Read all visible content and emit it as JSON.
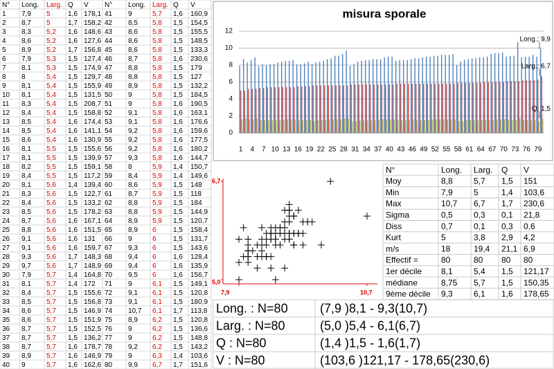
{
  "sheet": {
    "header": [
      "N°",
      "Long.",
      "Larg.",
      "Q",
      "V",
      "N°",
      "Long.",
      "Larg.",
      "Q",
      "V"
    ],
    "rows": [
      [
        "1",
        "7,9",
        "5",
        "1,6",
        "178,1",
        "41",
        "9",
        "5,7",
        "1,6",
        "160,9"
      ],
      [
        "2",
        "8,7",
        "5",
        "1,7",
        "158,2",
        "42",
        "8,5",
        "5,8",
        "1,5",
        "154,5"
      ],
      [
        "3",
        "8,3",
        "5,2",
        "1,6",
        "148,6",
        "43",
        "8,6",
        "5,8",
        "1,5",
        "155,5"
      ],
      [
        "4",
        "8,6",
        "5,2",
        "1,6",
        "127,6",
        "44",
        "8,6",
        "5,8",
        "1,5",
        "148,5"
      ],
      [
        "5",
        "8,9",
        "5,2",
        "1,7",
        "156,8",
        "45",
        "8,6",
        "5,8",
        "1,5",
        "133,3"
      ],
      [
        "6",
        "7,9",
        "5,3",
        "1,5",
        "127,4",
        "46",
        "8,7",
        "5,8",
        "1,6",
        "230,6"
      ],
      [
        "7",
        "8,1",
        "5,3",
        "1,5",
        "174,9",
        "47",
        "8,8",
        "5,8",
        "1,5",
        "179"
      ],
      [
        "8",
        "8",
        "5,4",
        "1,5",
        "129,7",
        "48",
        "8,8",
        "5,8",
        "1,5",
        "127"
      ],
      [
        "9",
        "8,1",
        "5,4",
        "1,5",
        "155,9",
        "49",
        "8,9",
        "5,8",
        "1,5",
        "132,2"
      ],
      [
        "10",
        "8,1",
        "5,4",
        "1,5",
        "131,5",
        "50",
        "9",
        "5,8",
        "1,5",
        "184,5"
      ],
      [
        "11",
        "8,3",
        "5,4",
        "1,5",
        "208,7",
        "51",
        "9",
        "5,8",
        "1,6",
        "190,5"
      ],
      [
        "12",
        "8,4",
        "5,4",
        "1,5",
        "158,8",
        "52",
        "9,1",
        "5,8",
        "1,6",
        "163,1"
      ],
      [
        "13",
        "8,5",
        "5,4",
        "1,6",
        "174,4",
        "53",
        "9,1",
        "5,8",
        "1,6",
        "176,6"
      ],
      [
        "14",
        "8,5",
        "5,4",
        "1,6",
        "141,1",
        "54",
        "9,2",
        "5,8",
        "1,6",
        "159,6"
      ],
      [
        "15",
        "8,6",
        "5,4",
        "1,6",
        "130,9",
        "55",
        "9,2",
        "5,8",
        "1,6",
        "177,5"
      ],
      [
        "16",
        "8,1",
        "5,5",
        "1,5",
        "155,6",
        "56",
        "9,2",
        "5,8",
        "1,6",
        "180,2"
      ],
      [
        "17",
        "8,1",
        "5,5",
        "1,5",
        "139,9",
        "57",
        "9,3",
        "5,8",
        "1,6",
        "144,7"
      ],
      [
        "18",
        "8,2",
        "5,5",
        "1,5",
        "159,1",
        "58",
        "8",
        "5,9",
        "1,4",
        "150,7"
      ],
      [
        "19",
        "8,4",
        "5,5",
        "1,5",
        "117,2",
        "59",
        "8,4",
        "5,9",
        "1,4",
        "149,6"
      ],
      [
        "20",
        "8,1",
        "5,6",
        "1,4",
        "139,4",
        "60",
        "8,6",
        "5,9",
        "1,5",
        "148"
      ],
      [
        "21",
        "8,3",
        "5,6",
        "1,5",
        "122,7",
        "61",
        "8,7",
        "5,9",
        "1,5",
        "118"
      ],
      [
        "22",
        "8,4",
        "5,6",
        "1,5",
        "133,2",
        "62",
        "8,8",
        "5,9",
        "1,5",
        "184"
      ],
      [
        "23",
        "8,5",
        "5,6",
        "1,5",
        "178,2",
        "63",
        "8,8",
        "5,9",
        "1,5",
        "144,9"
      ],
      [
        "24",
        "8,7",
        "5,6",
        "1,6",
        "167,1",
        "64",
        "8,9",
        "5,9",
        "1,5",
        "120,7"
      ],
      [
        "25",
        "8,8",
        "5,6",
        "1,6",
        "151,5",
        "65",
        "8,9",
        "6",
        "1,5",
        "158,4"
      ],
      [
        "26",
        "9,1",
        "5,6",
        "1,6",
        "131",
        "66",
        "9",
        "6",
        "1,5",
        "131,7"
      ],
      [
        "27",
        "9,1",
        "5,6",
        "1,6",
        "159,7",
        "67",
        "9,3",
        "6",
        "1,5",
        "143,6"
      ],
      [
        "28",
        "9,3",
        "5,6",
        "1,7",
        "148,3",
        "68",
        "9,4",
        "6",
        "1,6",
        "128,4"
      ],
      [
        "29",
        "9,7",
        "5,6",
        "1,7",
        "148,9",
        "69",
        "9,4",
        "6",
        "1,6",
        "135,9"
      ],
      [
        "30",
        "7,9",
        "5,7",
        "1,4",
        "164,8",
        "70",
        "9,5",
        "6",
        "1,6",
        "156,7"
      ],
      [
        "31",
        "8,1",
        "5,7",
        "1,4",
        "172",
        "71",
        "9",
        "6,1",
        "1,5",
        "149,1"
      ],
      [
        "32",
        "8,4",
        "5,7",
        "1,5",
        "155,6",
        "72",
        "9,1",
        "6,1",
        "1,5",
        "120,8"
      ],
      [
        "33",
        "8,5",
        "5,7",
        "1,5",
        "156,8",
        "73",
        "9,1",
        "6,1",
        "1,5",
        "180,9"
      ],
      [
        "34",
        "8,6",
        "5,7",
        "1,5",
        "146,9",
        "74",
        "10,7",
        "6,1",
        "1,7",
        "113,8"
      ],
      [
        "35",
        "8,6",
        "5,7",
        "1,5",
        "151,9",
        "75",
        "8,9",
        "6,2",
        "1,5",
        "120,8"
      ],
      [
        "36",
        "8,7",
        "5,7",
        "1,5",
        "152,5",
        "76",
        "9",
        "6,2",
        "1,5",
        "136,6"
      ],
      [
        "37",
        "8,7",
        "5,7",
        "1,5",
        "136,2",
        "77",
        "9",
        "6,2",
        "1,5",
        "148,8"
      ],
      [
        "38",
        "8,7",
        "5,7",
        "1,6",
        "178,7",
        "78",
        "9,2",
        "6,2",
        "1,5",
        "143,2"
      ],
      [
        "39",
        "8,9",
        "5,7",
        "1,6",
        "146,9",
        "79",
        "9",
        "6,3",
        "1,4",
        "103,6"
      ],
      [
        "40",
        "9",
        "5,7",
        "1,6",
        "162,6",
        "80",
        "9,9",
        "6,7",
        "1,7",
        "151,6"
      ]
    ]
  },
  "chart_data": [
    {
      "type": "bar",
      "title": "misura sporale",
      "categories": [
        "1",
        null,
        null,
        "4",
        null,
        null,
        "7",
        null,
        null,
        "10",
        null,
        null,
        "13",
        null,
        null,
        "16",
        null,
        null,
        "19",
        null,
        null,
        "22",
        null,
        null,
        "25",
        null,
        null,
        "28",
        null,
        null,
        "31",
        null,
        null,
        "34",
        null,
        null,
        "37",
        null,
        null,
        "40",
        null,
        null,
        "43",
        null,
        null,
        "46",
        null,
        null,
        "49",
        null,
        null,
        "52",
        null,
        null,
        "55",
        null,
        null,
        "58",
        null,
        null,
        "61",
        null,
        null,
        "64",
        null,
        null,
        "67",
        null,
        null,
        "70",
        null,
        null,
        "73",
        null,
        null,
        "76",
        null,
        null,
        "79",
        null
      ],
      "series": [
        {
          "name": "Long.",
          "color": "#4f81bd",
          "values": [
            7.9,
            8.7,
            8.3,
            8.6,
            8.9,
            7.9,
            8.1,
            8,
            8.1,
            8.1,
            8.3,
            8.4,
            8.5,
            8.5,
            8.6,
            8.1,
            8.1,
            8.2,
            8.4,
            8.1,
            8.3,
            8.4,
            8.5,
            8.7,
            8.8,
            9.1,
            9.1,
            9.3,
            9.7,
            7.9,
            8.1,
            8.4,
            8.5,
            8.6,
            8.6,
            8.7,
            8.7,
            8.7,
            8.9,
            9,
            9,
            8.5,
            8.6,
            8.6,
            8.6,
            8.7,
            8.8,
            8.8,
            8.9,
            9,
            9,
            9.1,
            9.1,
            9.2,
            9.2,
            9.2,
            9.3,
            8,
            8.4,
            8.6,
            8.7,
            8.8,
            8.8,
            8.9,
            8.9,
            9,
            9.3,
            9.4,
            9.4,
            9.5,
            9,
            9.1,
            9.1,
            10.7,
            8.9,
            9,
            9,
            9.2,
            9,
            9.9
          ]
        },
        {
          "name": "Larg.",
          "color": "#c0504d",
          "values": [
            5,
            5,
            5.2,
            5.2,
            5.2,
            5.3,
            5.3,
            5.4,
            5.4,
            5.4,
            5.4,
            5.4,
            5.4,
            5.4,
            5.4,
            5.5,
            5.5,
            5.5,
            5.5,
            5.6,
            5.6,
            5.6,
            5.6,
            5.6,
            5.6,
            5.6,
            5.6,
            5.6,
            5.6,
            5.7,
            5.7,
            5.7,
            5.7,
            5.7,
            5.7,
            5.7,
            5.7,
            5.7,
            5.7,
            5.7,
            5.7,
            5.8,
            5.8,
            5.8,
            5.8,
            5.8,
            5.8,
            5.8,
            5.8,
            5.8,
            5.8,
            5.8,
            5.8,
            5.8,
            5.8,
            5.8,
            5.8,
            5.9,
            5.9,
            5.9,
            5.9,
            5.9,
            5.9,
            5.9,
            6,
            6,
            6,
            6,
            6,
            6,
            6.1,
            6.1,
            6.1,
            6.1,
            6.2,
            6.2,
            6.2,
            6.2,
            6.3,
            6.7
          ]
        },
        {
          "name": "Q",
          "color": "#9bbb59",
          "values": [
            1.6,
            1.7,
            1.6,
            1.6,
            1.7,
            1.5,
            1.5,
            1.5,
            1.5,
            1.5,
            1.5,
            1.5,
            1.6,
            1.6,
            1.6,
            1.5,
            1.5,
            1.5,
            1.5,
            1.4,
            1.5,
            1.5,
            1.5,
            1.6,
            1.6,
            1.6,
            1.6,
            1.7,
            1.7,
            1.4,
            1.4,
            1.5,
            1.5,
            1.5,
            1.5,
            1.5,
            1.5,
            1.6,
            1.6,
            1.6,
            1.6,
            1.5,
            1.5,
            1.5,
            1.5,
            1.6,
            1.5,
            1.5,
            1.5,
            1.5,
            1.6,
            1.6,
            1.6,
            1.6,
            1.6,
            1.6,
            1.6,
            1.4,
            1.4,
            1.5,
            1.5,
            1.5,
            1.5,
            1.5,
            1.5,
            1.5,
            1.5,
            1.6,
            1.6,
            1.6,
            1.5,
            1.5,
            1.5,
            1.7,
            1.5,
            1.5,
            1.5,
            1.5,
            1.4,
            1.7
          ]
        }
      ],
      "annotations": [
        "Long.; 9,9",
        "Larg.; 6,7",
        "Q; 1,5"
      ],
      "ylim": [
        0,
        12
      ],
      "yticks": [
        0,
        2,
        4,
        6,
        8,
        10,
        12
      ],
      "grid": true
    },
    {
      "type": "scatter",
      "x": [
        7.9,
        8.7,
        8.3,
        8.6,
        8.9,
        7.9,
        8.1,
        8,
        8.1,
        8.1,
        8.3,
        8.4,
        8.5,
        8.5,
        8.6,
        8.1,
        8.1,
        8.2,
        8.4,
        8.1,
        8.3,
        8.4,
        8.5,
        8.7,
        8.8,
        9.1,
        9.1,
        9.3,
        9.7,
        7.9,
        8.1,
        8.4,
        8.5,
        8.6,
        8.6,
        8.7,
        8.7,
        8.7,
        8.9,
        9,
        9,
        8.5,
        8.6,
        8.6,
        8.6,
        8.7,
        8.8,
        8.8,
        8.9,
        9,
        9,
        9.1,
        9.1,
        9.2,
        9.2,
        9.2,
        9.3,
        8,
        8.4,
        8.6,
        8.7,
        8.8,
        8.8,
        8.9,
        8.9,
        9,
        9.3,
        9.4,
        9.4,
        9.5,
        9,
        9.1,
        9.1,
        10.7,
        8.9,
        9,
        9,
        9.2,
        9,
        9.9
      ],
      "values": [
        5,
        5,
        5.2,
        5.2,
        5.2,
        5.3,
        5.3,
        5.4,
        5.4,
        5.4,
        5.4,
        5.4,
        5.4,
        5.4,
        5.4,
        5.5,
        5.5,
        5.5,
        5.5,
        5.6,
        5.6,
        5.6,
        5.6,
        5.6,
        5.6,
        5.6,
        5.6,
        5.6,
        5.6,
        5.7,
        5.7,
        5.7,
        5.7,
        5.7,
        5.7,
        5.7,
        5.7,
        5.7,
        5.7,
        5.7,
        5.7,
        5.8,
        5.8,
        5.8,
        5.8,
        5.8,
        5.8,
        5.8,
        5.8,
        5.8,
        5.8,
        5.8,
        5.8,
        5.8,
        5.8,
        5.8,
        5.8,
        5.9,
        5.9,
        5.9,
        5.9,
        5.9,
        5.9,
        5.9,
        6,
        6,
        6,
        6,
        6,
        6,
        6.1,
        6.1,
        6.1,
        6.1,
        6.2,
        6.2,
        6.2,
        6.2,
        6.3,
        6.7
      ],
      "color": "#000000",
      "xlim": [
        7.9,
        10.7
      ],
      "xticks": [
        {
          "value": 7.9,
          "label": "7,9"
        },
        {
          "value": 10.7,
          "label": "10,7"
        }
      ],
      "ylim": [
        5,
        6.7
      ],
      "yticks": [
        {
          "value": 5,
          "label": "5,0"
        },
        {
          "value": 6.7,
          "label": "6,7"
        }
      ]
    }
  ],
  "stats": {
    "header": [
      "N°",
      "Long.",
      "Larg.",
      "Q",
      "V"
    ],
    "rows": [
      [
        "Moy",
        "8,8",
        "5,7",
        "1,5",
        "151"
      ],
      [
        "Min",
        "7,9",
        "5",
        "1,4",
        "103,6"
      ],
      [
        "Max",
        "10,7",
        "6,7",
        "1,7",
        "230,6"
      ],
      [
        "Sigma",
        "0,5",
        "0,3",
        "0,1",
        "21,8"
      ],
      [
        "Diss",
        "0,7",
        "0,1",
        "0,3",
        "0,6"
      ],
      [
        "Kurt",
        "5",
        "3,8",
        "2,9",
        "4,2"
      ],
      [
        "m/s",
        "18",
        "19,4",
        "21,1",
        "6,9"
      ],
      [
        "Effectif =",
        "80",
        "80",
        "80",
        "80"
      ],
      [
        "1er décile",
        "8,1",
        "5,4",
        "1,5",
        "121,17"
      ],
      [
        "médiane",
        "8,75",
        "5,7",
        "1,5",
        "150,35"
      ],
      [
        "9ème décile",
        "9,3",
        "6,1",
        "1,6",
        "178,65"
      ]
    ]
  },
  "summary": [
    [
      "Long. : N=80",
      "(7,9 )8,1 - 9,3(10,7)"
    ],
    [
      "Larg. : N=80",
      "(5,0 )5,4 - 6,1(6,7)"
    ],
    [
      "Q : N=80",
      "(1,4 )1,5 - 1,6(1,7)"
    ],
    [
      "V : N=80",
      "(103,6 )121,17 - 178,65(230,6)"
    ]
  ]
}
